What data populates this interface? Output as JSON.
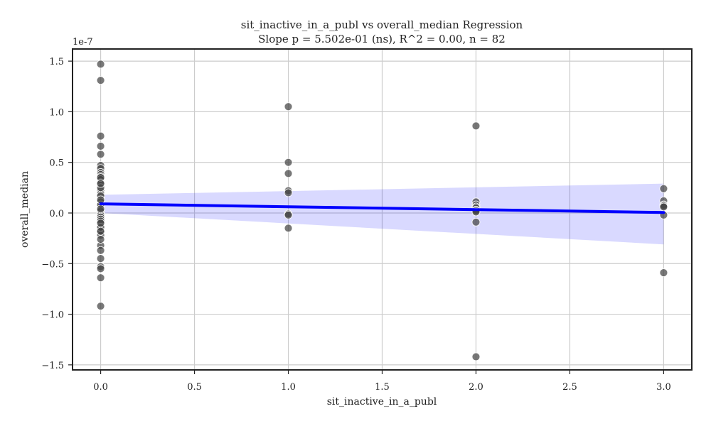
{
  "chart_data": {
    "type": "scatter",
    "title": "sit_inactive_in_a_publ vs overall_median Regression",
    "subtitle": "Slope p = 5.502e-01 (ns), R^2 = 0.00, n = 82",
    "xlabel": "sit_inactive_in_a_publ",
    "ylabel": "overall_median",
    "y_offset_label": "1e-7",
    "y_scale": 1e-07,
    "xlim": [
      -0.15,
      3.15
    ],
    "ylim": [
      -1.55,
      1.62
    ],
    "x_ticks": [
      0.0,
      0.5,
      1.0,
      1.5,
      2.0,
      2.5,
      3.0
    ],
    "x_tick_labels": [
      "0.0",
      "0.5",
      "1.0",
      "1.5",
      "2.0",
      "2.5",
      "3.0"
    ],
    "y_ticks": [
      -1.5,
      -1.0,
      -0.5,
      0.0,
      0.5,
      1.0,
      1.5
    ],
    "y_tick_labels": [
      "−1.5",
      "−1.0",
      "−0.5",
      "0.0",
      "0.5",
      "1.0",
      "1.5"
    ],
    "grid": true,
    "points": [
      {
        "x": 0,
        "y": 1.47
      },
      {
        "x": 0,
        "y": 1.31
      },
      {
        "x": 0,
        "y": 0.76
      },
      {
        "x": 0,
        "y": 0.66
      },
      {
        "x": 0,
        "y": 0.58
      },
      {
        "x": 0,
        "y": 0.47
      },
      {
        "x": 0,
        "y": 0.44
      },
      {
        "x": 0,
        "y": 0.4
      },
      {
        "x": 0,
        "y": 0.38
      },
      {
        "x": 0,
        "y": 0.36
      },
      {
        "x": 0,
        "y": 0.33
      },
      {
        "x": 0,
        "y": 0.3
      },
      {
        "x": 0,
        "y": 0.22
      },
      {
        "x": 0,
        "y": 0.19
      },
      {
        "x": 0,
        "y": 0.16
      },
      {
        "x": 0,
        "y": 0.14
      },
      {
        "x": 0,
        "y": 0.12
      },
      {
        "x": 0,
        "y": 0.09
      },
      {
        "x": 0,
        "y": 0.07
      },
      {
        "x": 0,
        "y": 0.05
      },
      {
        "x": 0,
        "y": 0.03
      },
      {
        "x": 0,
        "y": 0.01
      },
      {
        "x": 0,
        "y": -0.01
      },
      {
        "x": 0,
        "y": -0.03
      },
      {
        "x": 0,
        "y": -0.05
      },
      {
        "x": 0,
        "y": -0.07
      },
      {
        "x": 0,
        "y": -0.09
      },
      {
        "x": 0,
        "y": -0.11
      },
      {
        "x": 0,
        "y": -0.13
      },
      {
        "x": 0,
        "y": -0.15
      },
      {
        "x": 0,
        "y": -0.17
      },
      {
        "x": 0,
        "y": -0.19
      },
      {
        "x": 0,
        "y": -0.22
      },
      {
        "x": 0,
        "y": -0.32
      },
      {
        "x": 0,
        "y": -0.37
      },
      {
        "x": 0,
        "y": -0.45
      },
      {
        "x": 0,
        "y": -0.53
      },
      {
        "x": 0,
        "y": -0.55
      },
      {
        "x": 0,
        "y": -0.64
      },
      {
        "x": 0,
        "y": -0.92
      },
      {
        "x": 0,
        "y": 0.25
      },
      {
        "x": 0,
        "y": 0.17
      },
      {
        "x": 0,
        "y": 0.11
      },
      {
        "x": 0,
        "y": 0.08
      },
      {
        "x": 0,
        "y": 0.02
      },
      {
        "x": 0,
        "y": -0.02
      },
      {
        "x": 0,
        "y": -0.04
      },
      {
        "x": 0,
        "y": -0.06
      },
      {
        "x": 0,
        "y": -0.08
      },
      {
        "x": 0,
        "y": -0.14
      },
      {
        "x": 0,
        "y": -0.18
      },
      {
        "x": 0,
        "y": -0.26
      },
      {
        "x": 1,
        "y": 1.05
      },
      {
        "x": 1,
        "y": 0.5
      },
      {
        "x": 1,
        "y": 0.39
      },
      {
        "x": 1,
        "y": 0.22
      },
      {
        "x": 1,
        "y": 0.2
      },
      {
        "x": 1,
        "y": -0.01
      },
      {
        "x": 1,
        "y": -0.02
      },
      {
        "x": 1,
        "y": -0.15
      },
      {
        "x": 2,
        "y": 0.86
      },
      {
        "x": 2,
        "y": 0.11
      },
      {
        "x": 2,
        "y": 0.08
      },
      {
        "x": 2,
        "y": 0.06
      },
      {
        "x": 2,
        "y": 0.05
      },
      {
        "x": 2,
        "y": 0.03
      },
      {
        "x": 2,
        "y": 0.02
      },
      {
        "x": 2,
        "y": 0.01
      },
      {
        "x": 2,
        "y": -0.09
      },
      {
        "x": 2,
        "y": -1.42
      },
      {
        "x": 3,
        "y": 0.24
      },
      {
        "x": 3,
        "y": 0.12
      },
      {
        "x": 3,
        "y": 0.08
      },
      {
        "x": 3,
        "y": 0.07
      },
      {
        "x": 3,
        "y": 0.06
      },
      {
        "x": 3,
        "y": -0.02
      },
      {
        "x": 3,
        "y": -0.59
      },
      {
        "x": 0,
        "y": 0.35
      },
      {
        "x": 0,
        "y": 0.29
      },
      {
        "x": 0,
        "y": 0.13
      },
      {
        "x": 0,
        "y": 0.04
      },
      {
        "x": 0,
        "y": -0.1
      }
    ],
    "regression": {
      "x": [
        0,
        3
      ],
      "y": [
        0.09,
        0.005
      ],
      "ci_lower": [
        0.0,
        -0.31
      ],
      "ci_upper": [
        0.18,
        0.29
      ]
    },
    "colors": {
      "points": "#444444",
      "regression_line": "#0000ff",
      "ci_band": "#0000ff",
      "grid": "#cccccc",
      "frame": "#222222"
    }
  }
}
